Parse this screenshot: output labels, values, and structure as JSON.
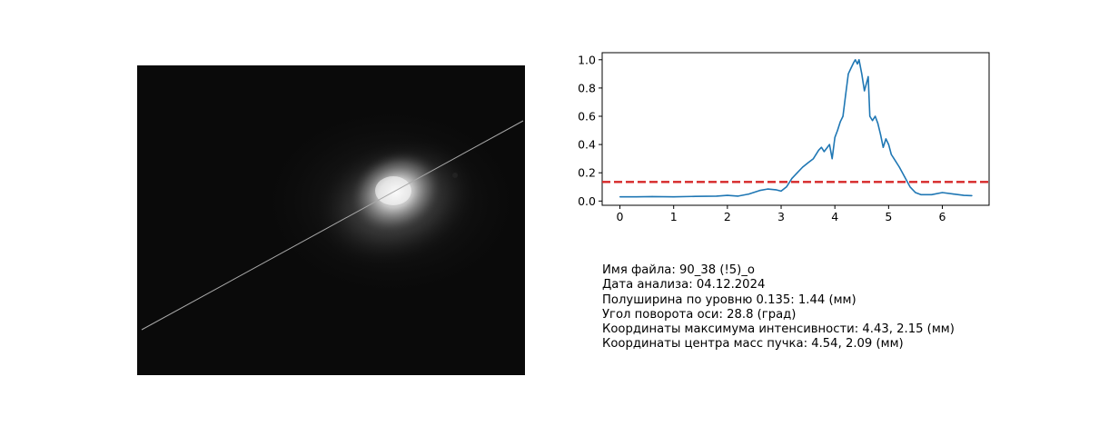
{
  "beam_image": {
    "background_color": "#0a0a0a",
    "line_color": "#a8a8a8"
  },
  "chart_data": {
    "type": "line",
    "title": "",
    "xlabel": "",
    "ylabel": "",
    "xlim": [
      -0.33,
      6.87
    ],
    "ylim": [
      -0.03,
      1.05
    ],
    "xticks": [
      "0",
      "1",
      "2",
      "3",
      "4",
      "5",
      "6"
    ],
    "yticks": [
      "0.0",
      "0.2",
      "0.4",
      "0.6",
      "0.8",
      "1.0"
    ],
    "grid": false,
    "series": [
      {
        "color": "#1f77b4",
        "x": [
          0.0,
          0.3,
          0.6,
          1.0,
          1.4,
          1.8,
          2.0,
          2.2,
          2.4,
          2.6,
          2.75,
          2.9,
          3.0,
          3.1,
          3.2,
          3.3,
          3.4,
          3.5,
          3.6,
          3.7,
          3.75,
          3.8,
          3.9,
          3.95,
          4.0,
          4.05,
          4.1,
          4.15,
          4.2,
          4.25,
          4.3,
          4.35,
          4.38,
          4.42,
          4.45,
          4.5,
          4.55,
          4.6,
          4.62,
          4.65,
          4.7,
          4.75,
          4.8,
          4.85,
          4.9,
          4.95,
          5.0,
          5.05,
          5.1,
          5.2,
          5.3,
          5.4,
          5.5,
          5.6,
          5.8,
          6.0,
          6.2,
          6.4,
          6.55
        ],
        "values": [
          0.03,
          0.03,
          0.032,
          0.03,
          0.033,
          0.035,
          0.04,
          0.035,
          0.05,
          0.075,
          0.085,
          0.08,
          0.07,
          0.1,
          0.16,
          0.2,
          0.24,
          0.27,
          0.3,
          0.36,
          0.38,
          0.35,
          0.4,
          0.3,
          0.45,
          0.5,
          0.56,
          0.6,
          0.75,
          0.9,
          0.94,
          0.98,
          1.0,
          0.97,
          1.0,
          0.9,
          0.78,
          0.85,
          0.88,
          0.6,
          0.57,
          0.6,
          0.55,
          0.47,
          0.38,
          0.44,
          0.4,
          0.33,
          0.3,
          0.24,
          0.17,
          0.1,
          0.06,
          0.045,
          0.045,
          0.06,
          0.05,
          0.04,
          0.038
        ]
      }
    ],
    "threshold": {
      "value": 0.135,
      "color": "#d62728",
      "style": "dashed"
    }
  },
  "info": {
    "file_name": "Имя файла: 90_38 (!5)_о",
    "analysis_date": "Дата анализа: 04.12.2024",
    "half_width": "Полуширина по уровню 0.135: 1.44 (мм)",
    "rotation_angle": "Угол поворота оси: 28.8 (град)",
    "max_intensity_coords": "Координаты максимума интенсивности: 4.43, 2.15 (мм)",
    "center_of_mass_coords": "Координаты центра масс пучка: 4.54, 2.09 (мм)"
  }
}
